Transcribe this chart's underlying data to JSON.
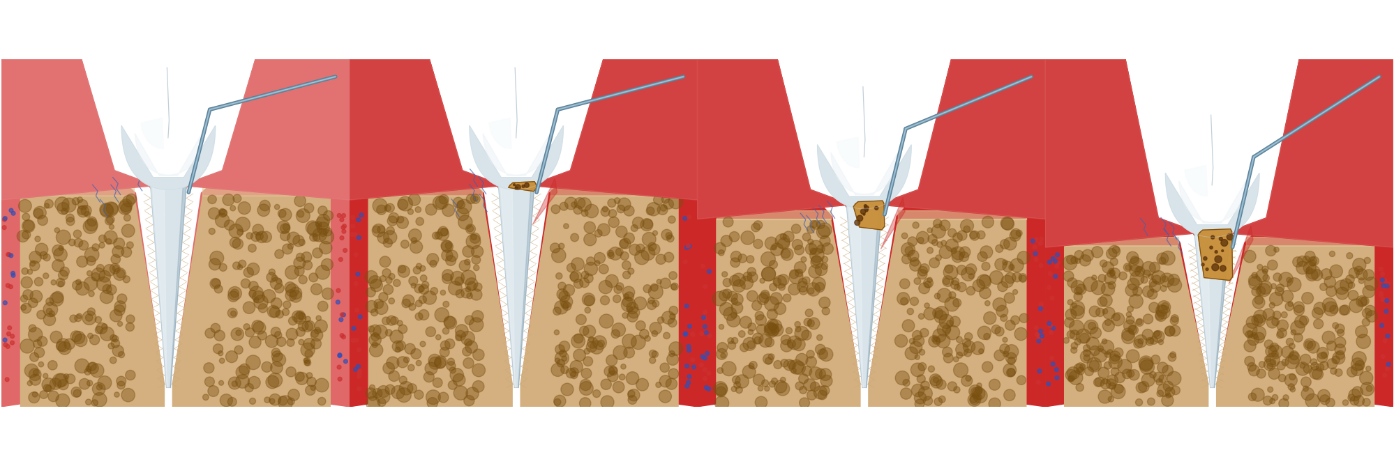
{
  "background_color": "#ffffff",
  "figsize": [
    19.99,
    6.69
  ],
  "dpi": 100,
  "stages": [
    {
      "tartar": false,
      "gum_recession": 0.0,
      "inflammation": false,
      "bone_loss": 0.0
    },
    {
      "tartar": true,
      "gum_recession": 0.0,
      "inflammation": true,
      "bone_loss": 0.0
    },
    {
      "tartar": true,
      "gum_recession": 0.25,
      "inflammation": true,
      "bone_loss": 0.28
    },
    {
      "tartar": true,
      "gum_recession": 0.62,
      "inflammation": true,
      "bone_loss": 0.6
    }
  ],
  "colors": {
    "white": "#ffffff",
    "tooth_base": "#d8e4ea",
    "tooth_mid": "#c8d8e2",
    "tooth_hl1": "#eef3f6",
    "tooth_hl2": "#f8fbfc",
    "tooth_shadow": "#8fa8b8",
    "tooth_dark": "#6888a0",
    "gum_pink": "#e06868",
    "gum_dark": "#c84040",
    "gum_inflamed": "#cc2828",
    "gum_light": "#e89090",
    "bone_tan": "#d4b080",
    "bone_beige": "#e0c898",
    "bone_dot": "#7a5010",
    "bone_dot2": "#9a6818",
    "pdl_line": "#c8a878",
    "pdl_line2": "#e8c8a0",
    "tartar_base": "#c8903a",
    "tartar_hi": "#daa848",
    "tartar_dark": "#7a4808",
    "tartar_dot": "#5a3008",
    "probe_dark": "#5a8098",
    "probe_mid": "#7aa0b8",
    "probe_hl": "#a8c8d8",
    "vessel_blue": "#4060b0",
    "vessel_red": "#b02020",
    "dot_red": "#cc3030",
    "dot_blue": "#3050b8"
  }
}
